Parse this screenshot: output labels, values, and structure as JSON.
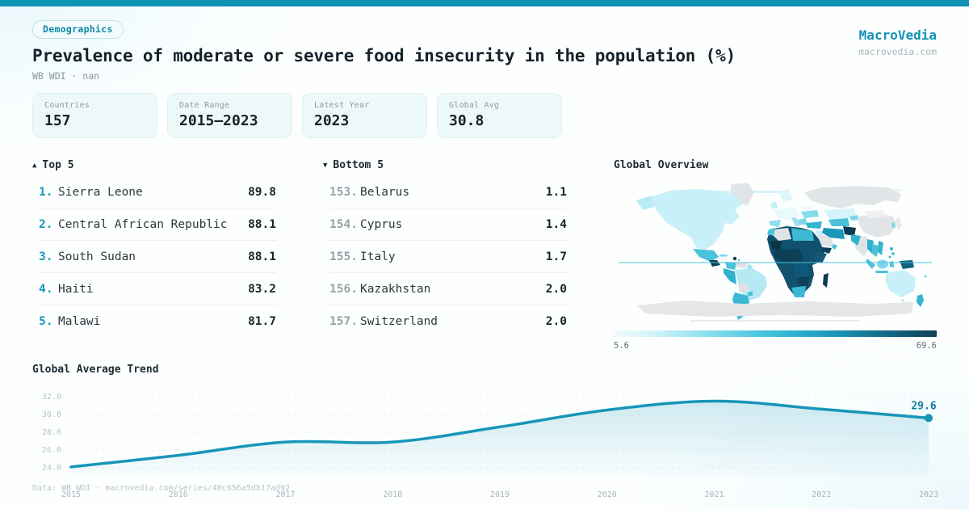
{
  "brand": {
    "name": "MacroVedia",
    "domain": "macrovedia.com"
  },
  "header": {
    "badge": "Demographics",
    "title": "Prevalence of moderate or severe food insecurity in the population (%)",
    "subtitle": "WB WDI · nan"
  },
  "stats": [
    {
      "label": "Countries",
      "value": "157"
    },
    {
      "label": "Date Range",
      "value": "2015—2023"
    },
    {
      "label": "Latest Year",
      "value": "2023"
    },
    {
      "label": "Global Avg",
      "value": "30.8"
    }
  ],
  "top5": {
    "icon": "▲",
    "title": "Top 5",
    "rows": [
      {
        "rank": "1.",
        "name": "Sierra Leone",
        "value": "89.8"
      },
      {
        "rank": "2.",
        "name": "Central African Republic",
        "value": "88.1"
      },
      {
        "rank": "3.",
        "name": "South Sudan",
        "value": "88.1"
      },
      {
        "rank": "4.",
        "name": "Haiti",
        "value": "83.2"
      },
      {
        "rank": "5.",
        "name": "Malawi",
        "value": "81.7"
      }
    ]
  },
  "bottom5": {
    "icon": "▼",
    "title": "Bottom 5",
    "rows": [
      {
        "rank": "153.",
        "name": "Belarus",
        "value": "1.1"
      },
      {
        "rank": "154.",
        "name": "Cyprus",
        "value": "1.4"
      },
      {
        "rank": "155.",
        "name": "Italy",
        "value": "1.7"
      },
      {
        "rank": "156.",
        "name": "Kazakhstan",
        "value": "2.0"
      },
      {
        "rank": "157.",
        "name": "Switzerland",
        "value": "2.0"
      }
    ]
  },
  "map": {
    "title": "Global Overview",
    "legend_min": "5.6",
    "legend_max": "69.6"
  },
  "trend": {
    "title": "Global Average Trend"
  },
  "chart_data": [
    {
      "type": "area",
      "title": "Global Average Trend",
      "x": [
        2015,
        2016,
        2017,
        2018,
        2019,
        2020,
        2021,
        2022,
        2023
      ],
      "values": [
        24.1,
        25.4,
        26.9,
        26.9,
        28.6,
        30.5,
        31.5,
        30.6,
        29.6
      ],
      "y_ticks": [
        32.0,
        30.0,
        28.0,
        26.0,
        24.0
      ],
      "ylim": [
        23,
        33
      ],
      "grid": "dashed",
      "end_label": "29.6",
      "line_color": "#1796b8"
    },
    {
      "type": "heatmap",
      "title": "Global Overview",
      "legend_min": 5.6,
      "legend_max": 69.6,
      "note": "world choropleth, darker = higher food insecurity"
    }
  ],
  "footer": {
    "text": "Data: WB WDI · macrovedia.com/series/48c656a5db17ad92"
  },
  "colors": {
    "accent": "#0e93b4",
    "map_low": "#f2fcfe",
    "map_high": "#123f55",
    "no_data": "#e2e5e7"
  }
}
